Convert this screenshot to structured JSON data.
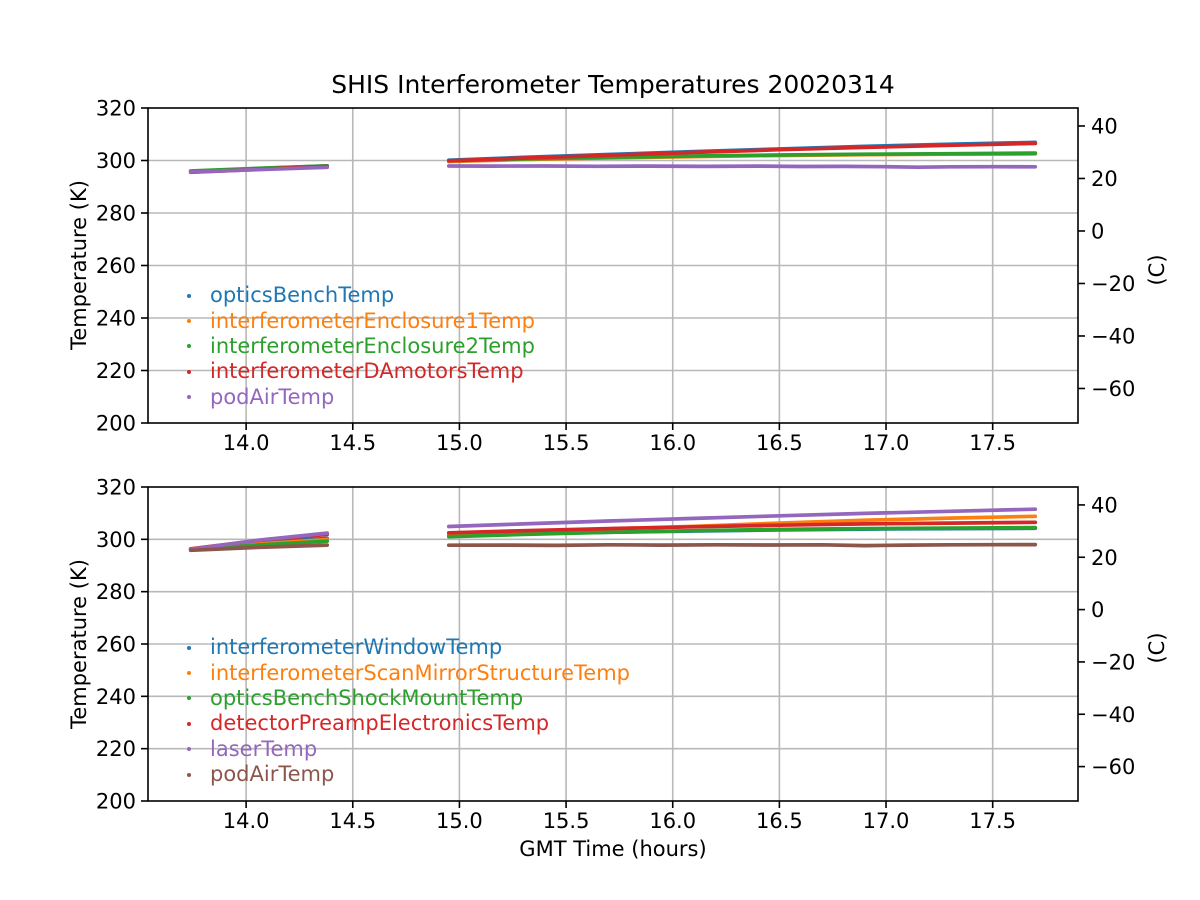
{
  "figure": {
    "background": "#ffffff",
    "grid_color": "#b8b8b8",
    "spine_color": "#000000"
  },
  "chart_data": [
    {
      "type": "scatter",
      "title": "SHIS Interferometer Temperatures 20020314",
      "xlabel": "",
      "ylabel_left": "Temperature (K)",
      "ylabel_right": "(C)",
      "xlim": [
        13.54,
        17.9
      ],
      "ylim_K": [
        200,
        320
      ],
      "x_ticks": [
        14.0,
        14.5,
        15.0,
        15.5,
        16.0,
        16.5,
        17.0,
        17.5
      ],
      "x_tick_labels": [
        "14.0",
        "14.5",
        "15.0",
        "15.5",
        "16.0",
        "16.5",
        "17.0",
        "17.5"
      ],
      "y_ticks_K": [
        200,
        220,
        240,
        260,
        280,
        300,
        320
      ],
      "y_tick_labels_K": [
        "200",
        "220",
        "240",
        "260",
        "280",
        "300",
        "320"
      ],
      "y_ticks_C": [
        40,
        20,
        0,
        -20,
        -40,
        -60
      ],
      "y_tick_labels_C": [
        "40",
        "20",
        "0",
        "−20",
        "−40",
        "−60"
      ],
      "grid": true,
      "legend_position": "lower-left-inside",
      "data_gap_hours": [
        14.38,
        14.95
      ],
      "series": [
        {
          "name": "opticsBenchTemp",
          "color": "#1f77b4",
          "segments": [
            [
              [
                13.74,
                295.9
              ],
              [
                14.05,
                296.9
              ],
              [
                14.38,
                297.9
              ]
            ],
            [
              [
                14.95,
                300.1
              ],
              [
                15.3,
                301.2
              ],
              [
                15.7,
                302.3
              ],
              [
                16.1,
                303.4
              ],
              [
                16.5,
                304.4
              ],
              [
                16.9,
                305.4
              ],
              [
                17.3,
                306.2
              ],
              [
                17.7,
                306.9
              ]
            ]
          ]
        },
        {
          "name": "interferometerEnclosure1Temp",
          "color": "#ff7f0e",
          "segments": [
            [
              [
                13.74,
                295.8
              ],
              [
                14.05,
                296.8
              ],
              [
                14.38,
                297.8
              ]
            ],
            [
              [
                14.95,
                299.6
              ],
              [
                15.3,
                300.4
              ],
              [
                15.7,
                301.0
              ],
              [
                16.1,
                301.5
              ],
              [
                16.5,
                301.9
              ],
              [
                16.9,
                302.2
              ],
              [
                17.3,
                302.4
              ],
              [
                17.7,
                302.5
              ]
            ]
          ]
        },
        {
          "name": "interferometerEnclosure2Temp",
          "color": "#2ca02c",
          "segments": [
            [
              [
                13.74,
                296.0
              ],
              [
                14.05,
                297.0
              ],
              [
                14.38,
                298.0
              ]
            ],
            [
              [
                14.95,
                299.9
              ],
              [
                15.3,
                300.6
              ],
              [
                15.7,
                301.2
              ],
              [
                16.1,
                301.7
              ],
              [
                16.5,
                302.1
              ],
              [
                16.9,
                302.4
              ],
              [
                17.3,
                302.6
              ],
              [
                17.7,
                302.8
              ]
            ]
          ]
        },
        {
          "name": "interferometerDAmotorsTemp",
          "color": "#d62728",
          "segments": [
            [
              [
                13.74,
                295.5
              ],
              [
                14.05,
                296.6
              ],
              [
                14.38,
                297.7
              ]
            ],
            [
              [
                14.95,
                299.9
              ],
              [
                15.3,
                300.9
              ],
              [
                15.7,
                302.0
              ],
              [
                16.1,
                303.1
              ],
              [
                16.5,
                304.1
              ],
              [
                16.9,
                305.0
              ],
              [
                17.3,
                305.8
              ],
              [
                17.7,
                306.5
              ]
            ]
          ]
        },
        {
          "name": "podAirTemp",
          "color": "#9467bd",
          "segments": [
            [
              [
                13.74,
                295.6
              ],
              [
                14.05,
                296.5
              ],
              [
                14.38,
                297.4
              ]
            ],
            [
              [
                14.95,
                297.9
              ],
              [
                15.15,
                297.85
              ],
              [
                15.4,
                297.9
              ],
              [
                15.65,
                297.8
              ],
              [
                15.9,
                297.85
              ],
              [
                16.15,
                297.75
              ],
              [
                16.4,
                297.85
              ],
              [
                16.6,
                297.7
              ],
              [
                16.8,
                297.75
              ],
              [
                17.0,
                297.65
              ],
              [
                17.15,
                297.45
              ],
              [
                17.3,
                297.6
              ],
              [
                17.5,
                297.65
              ],
              [
                17.7,
                297.6
              ]
            ]
          ]
        }
      ]
    },
    {
      "type": "scatter",
      "title": "",
      "xlabel": "GMT Time (hours)",
      "ylabel_left": "Temperature (K)",
      "ylabel_right": "(C)",
      "xlim": [
        13.54,
        17.9
      ],
      "ylim_K": [
        200,
        320
      ],
      "x_ticks": [
        14.0,
        14.5,
        15.0,
        15.5,
        16.0,
        16.5,
        17.0,
        17.5
      ],
      "x_tick_labels": [
        "14.0",
        "14.5",
        "15.0",
        "15.5",
        "16.0",
        "16.5",
        "17.0",
        "17.5"
      ],
      "y_ticks_K": [
        200,
        220,
        240,
        260,
        280,
        300,
        320
      ],
      "y_tick_labels_K": [
        "200",
        "220",
        "240",
        "260",
        "280",
        "300",
        "320"
      ],
      "y_ticks_C": [
        40,
        20,
        0,
        -20,
        -40,
        -60
      ],
      "y_tick_labels_C": [
        "40",
        "20",
        "0",
        "−20",
        "−40",
        "−60"
      ],
      "grid": true,
      "legend_position": "lower-left-inside",
      "data_gap_hours": [
        14.38,
        14.95
      ],
      "series": [
        {
          "name": "interferometerWindowTemp",
          "color": "#1f77b4",
          "segments": [
            [
              [
                13.74,
                296.2
              ],
              [
                14.05,
                298.6
              ],
              [
                14.38,
                300.4
              ]
            ],
            [
              [
                14.95,
                301.4
              ],
              [
                15.3,
                302.1
              ],
              [
                15.7,
                302.7
              ],
              [
                16.1,
                303.2
              ],
              [
                16.5,
                303.6
              ],
              [
                16.9,
                303.9
              ],
              [
                17.3,
                304.1
              ],
              [
                17.7,
                304.2
              ]
            ]
          ]
        },
        {
          "name": "interferometerScanMirrorStructureTemp",
          "color": "#ff7f0e",
          "segments": [
            [
              [
                13.74,
                296.1
              ],
              [
                14.05,
                298.2
              ],
              [
                14.38,
                299.9
              ]
            ],
            [
              [
                14.95,
                302.0
              ],
              [
                15.3,
                303.1
              ],
              [
                15.7,
                304.0
              ],
              [
                16.1,
                305.0
              ],
              [
                16.5,
                306.2
              ],
              [
                16.9,
                307.3
              ],
              [
                17.3,
                308.1
              ],
              [
                17.7,
                308.8
              ]
            ]
          ]
        },
        {
          "name": "opticsBenchShockMountTemp",
          "color": "#2ca02c",
          "segments": [
            [
              [
                13.74,
                296.0
              ],
              [
                14.05,
                297.8
              ],
              [
                14.38,
                299.3
              ]
            ],
            [
              [
                14.95,
                301.0
              ],
              [
                15.3,
                301.9
              ],
              [
                15.7,
                302.7
              ],
              [
                16.1,
                303.3
              ],
              [
                16.5,
                303.8
              ],
              [
                16.9,
                304.1
              ],
              [
                17.3,
                304.3
              ],
              [
                17.7,
                304.5
              ]
            ]
          ]
        },
        {
          "name": "detectorPreampElectronicsTemp",
          "color": "#d62728",
          "segments": [
            [
              [
                13.74,
                296.4
              ],
              [
                14.05,
                299.5
              ],
              [
                14.38,
                301.9
              ]
            ],
            [
              [
                14.95,
                302.5
              ],
              [
                15.3,
                303.3
              ],
              [
                15.7,
                304.1
              ],
              [
                16.1,
                304.8
              ],
              [
                16.5,
                305.4
              ],
              [
                16.9,
                305.9
              ],
              [
                17.3,
                306.2
              ],
              [
                17.7,
                306.5
              ]
            ]
          ]
        },
        {
          "name": "laserTemp",
          "color": "#9467bd",
          "segments": [
            [
              [
                13.74,
                296.2
              ],
              [
                14.05,
                299.6
              ],
              [
                14.38,
                302.4
              ]
            ],
            [
              [
                14.95,
                304.9
              ],
              [
                15.3,
                305.9
              ],
              [
                15.7,
                307.0
              ],
              [
                16.1,
                308.0
              ],
              [
                16.5,
                309.0
              ],
              [
                16.9,
                309.9
              ],
              [
                17.3,
                310.7
              ],
              [
                17.7,
                311.5
              ]
            ]
          ]
        },
        {
          "name": "podAirTemp",
          "color": "#8c564b",
          "segments": [
            [
              [
                13.74,
                295.8
              ],
              [
                14.05,
                296.9
              ],
              [
                14.38,
                297.8
              ]
            ],
            [
              [
                14.95,
                297.75
              ],
              [
                15.2,
                297.8
              ],
              [
                15.45,
                297.7
              ],
              [
                15.7,
                297.9
              ],
              [
                15.95,
                297.8
              ],
              [
                16.2,
                297.9
              ],
              [
                16.45,
                297.85
              ],
              [
                16.7,
                297.9
              ],
              [
                16.9,
                297.6
              ],
              [
                17.1,
                297.8
              ],
              [
                17.3,
                297.9
              ],
              [
                17.5,
                297.95
              ],
              [
                17.7,
                298.0
              ]
            ]
          ]
        }
      ]
    }
  ]
}
